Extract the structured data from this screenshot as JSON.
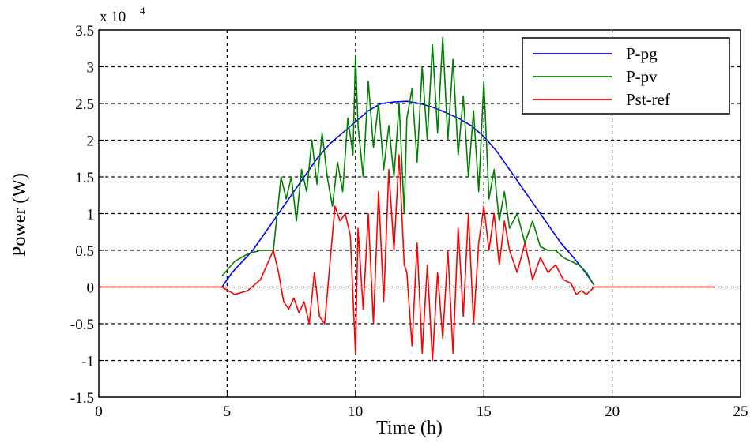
{
  "chart_data": {
    "type": "line",
    "xlabel": "Time (h)",
    "ylabel": "Power (W)",
    "y_multiplier_label": "x 10",
    "y_multiplier_exponent": "4",
    "xlim": [
      0,
      25
    ],
    "ylim": [
      -1.5,
      3.5
    ],
    "x_ticks": [
      0,
      5,
      10,
      15,
      20,
      25
    ],
    "y_ticks": [
      -1.5,
      -1,
      -0.5,
      0,
      0.5,
      1,
      1.5,
      2,
      2.5,
      3,
      3.5
    ],
    "y_tick_labels": [
      "-1.5",
      "-1",
      "-0.5",
      "0",
      "0.5",
      "1",
      "1.5",
      "2",
      "2.5",
      "3",
      "3.5"
    ],
    "x_tick_labels": [
      "0",
      "5",
      "10",
      "15",
      "20",
      "25"
    ],
    "grid": true,
    "legend_position": "top-right",
    "series": [
      {
        "name": "P-pg",
        "color": "#0000ff",
        "x": [
          4.8,
          5.2,
          5.6,
          6.0,
          6.5,
          7.0,
          7.5,
          8.0,
          8.5,
          9.0,
          9.5,
          10.0,
          10.5,
          11.0,
          11.5,
          12.0,
          12.5,
          13.0,
          13.5,
          14.0,
          14.5,
          15.0,
          15.5,
          16.0,
          16.5,
          17.0,
          17.5,
          18.0,
          18.5,
          19.0,
          19.3
        ],
        "y": [
          0.0,
          0.2,
          0.35,
          0.5,
          0.75,
          1.0,
          1.25,
          1.5,
          1.75,
          1.95,
          2.1,
          2.25,
          2.4,
          2.5,
          2.52,
          2.53,
          2.5,
          2.45,
          2.38,
          2.3,
          2.2,
          2.05,
          1.85,
          1.6,
          1.35,
          1.1,
          0.85,
          0.6,
          0.4,
          0.18,
          0.02
        ]
      },
      {
        "name": "P-pv",
        "color": "#008000",
        "x": [
          4.8,
          5.3,
          5.8,
          6.3,
          6.8,
          7.1,
          7.3,
          7.5,
          7.7,
          7.9,
          8.1,
          8.3,
          8.5,
          8.7,
          8.9,
          9.1,
          9.3,
          9.5,
          9.7,
          9.9,
          10.0,
          10.1,
          10.3,
          10.5,
          10.7,
          10.9,
          11.1,
          11.3,
          11.5,
          11.7,
          11.9,
          12.0,
          12.2,
          12.4,
          12.6,
          12.8,
          13.0,
          13.2,
          13.4,
          13.6,
          13.8,
          14.0,
          14.2,
          14.4,
          14.6,
          14.8,
          15.0,
          15.2,
          15.4,
          15.6,
          15.8,
          16.0,
          16.3,
          16.6,
          16.9,
          17.2,
          17.5,
          17.8,
          18.1,
          18.4,
          18.7,
          19.0,
          19.3
        ],
        "y": [
          0.15,
          0.35,
          0.45,
          0.5,
          0.5,
          1.5,
          1.2,
          1.5,
          0.9,
          1.6,
          1.3,
          2.0,
          1.4,
          2.1,
          1.5,
          1.1,
          1.7,
          1.3,
          2.3,
          1.8,
          3.15,
          2.2,
          1.5,
          2.8,
          1.9,
          2.5,
          1.6,
          2.2,
          1.5,
          2.5,
          1.0,
          2.3,
          2.7,
          1.7,
          3.0,
          2.0,
          3.3,
          2.1,
          3.4,
          2.0,
          3.1,
          1.8,
          2.6,
          1.5,
          2.4,
          1.3,
          2.8,
          1.2,
          1.6,
          0.9,
          1.3,
          0.8,
          1.0,
          0.6,
          0.9,
          0.55,
          0.5,
          0.5,
          0.4,
          0.35,
          0.3,
          0.2,
          0.02
        ]
      },
      {
        "name": "Pst-ref",
        "color": "#ff0000",
        "x": [
          0,
          4.8,
          5.3,
          5.8,
          6.3,
          6.8,
          7.0,
          7.2,
          7.4,
          7.6,
          7.8,
          8.0,
          8.2,
          8.4,
          8.6,
          8.8,
          9.0,
          9.2,
          9.4,
          9.6,
          9.8,
          10.0,
          10.1,
          10.3,
          10.5,
          10.7,
          10.9,
          11.1,
          11.3,
          11.5,
          11.7,
          11.9,
          12.0,
          12.2,
          12.4,
          12.6,
          12.8,
          13.0,
          13.2,
          13.4,
          13.6,
          13.8,
          14.0,
          14.2,
          14.4,
          14.6,
          14.8,
          15.0,
          15.2,
          15.4,
          15.6,
          15.8,
          16.0,
          16.3,
          16.6,
          16.9,
          17.2,
          17.5,
          17.8,
          18.1,
          18.4,
          18.6,
          18.8,
          19.0,
          19.3,
          24.0
        ],
        "y": [
          0.0,
          0.0,
          -0.1,
          -0.05,
          0.1,
          0.5,
          0.2,
          -0.2,
          -0.3,
          -0.15,
          -0.35,
          -0.2,
          -0.5,
          0.2,
          -0.4,
          -0.5,
          0.3,
          1.1,
          0.9,
          1.0,
          0.7,
          -0.9,
          0.8,
          -0.3,
          1.0,
          -0.5,
          1.3,
          -0.2,
          1.6,
          0.5,
          1.8,
          0.3,
          0.2,
          -0.8,
          0.6,
          -0.9,
          0.3,
          -1.0,
          0.2,
          -0.7,
          0.5,
          -0.9,
          0.8,
          -0.4,
          1.0,
          -0.5,
          0.6,
          1.1,
          0.5,
          1.0,
          0.3,
          0.9,
          0.5,
          0.2,
          0.6,
          0.1,
          0.4,
          0.2,
          0.3,
          0.1,
          0.05,
          -0.1,
          -0.05,
          -0.1,
          0.0,
          0.0
        ]
      }
    ]
  }
}
